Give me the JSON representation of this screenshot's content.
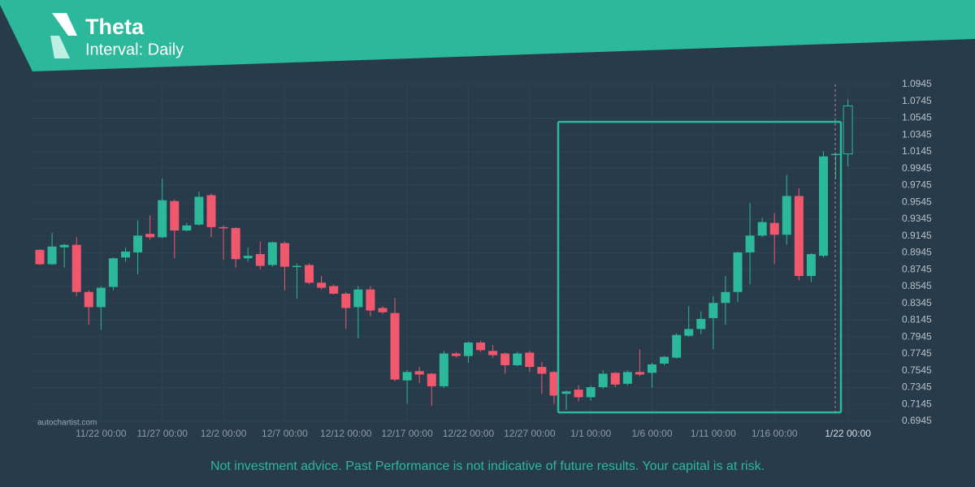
{
  "chart_data": {
    "type": "candlestick",
    "title": "Theta",
    "subtitle": "Interval: Daily",
    "watermark": "autochartist.com",
    "disclaimer": "Not investment advice. Past Performance is not indicative of future results. Your capital is at risk.",
    "categories": [
      null,
      null,
      null,
      null,
      null,
      "11/22 00:00",
      null,
      null,
      null,
      null,
      "11/27 00:00",
      null,
      null,
      null,
      null,
      "12/2 00:00",
      null,
      null,
      null,
      null,
      "12/7 00:00",
      null,
      null,
      null,
      null,
      "12/12 00:00",
      null,
      null,
      null,
      null,
      "12/17 00:00",
      null,
      null,
      null,
      null,
      "12/22 00:00",
      null,
      null,
      null,
      null,
      "12/27 00:00",
      null,
      null,
      null,
      null,
      "1/1 00:00",
      null,
      null,
      null,
      null,
      "1/6 00:00",
      null,
      null,
      null,
      null,
      "1/11 00:00",
      null,
      null,
      null,
      null,
      "1/16 00:00",
      null,
      null,
      null,
      null,
      null,
      "1/22 00:00"
    ],
    "open": [
      0.898,
      0.881,
      0.901,
      0.904,
      0.848,
      0.83,
      0.854,
      0.889,
      0.895,
      0.917,
      0.913,
      0.956,
      0.921,
      0.928,
      0.963,
      0.925,
      0.924,
      0.888,
      0.893,
      0.88,
      0.906,
      0.878,
      0.88,
      0.859,
      0.855,
      0.846,
      0.83,
      0.851,
      0.829,
      0.823,
      0.743,
      0.754,
      0.751,
      0.736,
      0.775,
      0.772,
      0.788,
      0.778,
      0.775,
      0.761,
      0.776,
      0.759,
      0.753,
      0.727,
      0.732,
      0.723,
      0.735,
      0.752,
      0.739,
      0.753,
      0.752,
      0.763,
      0.77,
      0.796,
      0.804,
      0.817,
      0.835,
      0.848,
      0.895,
      0.915,
      0.93,
      0.916,
      0.962,
      0.867,
      0.891,
      1.011,
      1.012
    ],
    "high": [
      0.899,
      0.918,
      0.905,
      0.913,
      0.85,
      0.855,
      0.889,
      0.901,
      0.933,
      0.939,
      0.983,
      0.958,
      0.93,
      0.967,
      0.965,
      0.927,
      0.925,
      0.901,
      0.908,
      0.908,
      0.908,
      0.882,
      0.882,
      0.867,
      0.857,
      0.848,
      0.855,
      0.855,
      0.831,
      0.841,
      0.755,
      0.759,
      0.752,
      0.778,
      0.777,
      0.789,
      0.79,
      0.785,
      0.776,
      0.777,
      0.778,
      0.765,
      0.754,
      0.731,
      0.737,
      0.737,
      0.755,
      0.753,
      0.755,
      0.78,
      0.764,
      0.772,
      0.799,
      0.831,
      0.825,
      0.843,
      0.867,
      0.896,
      0.954,
      0.936,
      0.942,
      0.987,
      0.971,
      0.894,
      1.015,
      1.013,
      1.077
    ],
    "low": [
      0.88,
      0.88,
      0.877,
      0.843,
      0.809,
      0.803,
      0.85,
      0.884,
      0.869,
      0.91,
      0.912,
      0.888,
      0.92,
      0.927,
      0.913,
      0.886,
      0.877,
      0.884,
      0.875,
      0.878,
      0.85,
      0.84,
      0.857,
      0.851,
      0.845,
      0.804,
      0.793,
      0.819,
      0.822,
      0.742,
      0.715,
      0.74,
      0.713,
      0.734,
      0.77,
      0.764,
      0.777,
      0.77,
      0.751,
      0.76,
      0.753,
      0.727,
      0.715,
      0.708,
      0.718,
      0.719,
      0.733,
      0.735,
      0.737,
      0.748,
      0.734,
      0.761,
      0.769,
      0.795,
      0.798,
      0.78,
      0.809,
      0.836,
      0.857,
      0.913,
      0.881,
      0.904,
      0.862,
      0.86,
      0.889,
      0.983,
      0.997
    ],
    "close": [
      0.881,
      0.902,
      0.904,
      0.848,
      0.83,
      0.853,
      0.888,
      0.896,
      0.915,
      0.913,
      0.957,
      0.921,
      0.927,
      0.961,
      0.925,
      0.924,
      0.887,
      0.891,
      0.879,
      0.907,
      0.878,
      0.879,
      0.859,
      0.853,
      0.846,
      0.829,
      0.851,
      0.826,
      0.824,
      0.744,
      0.753,
      0.75,
      0.736,
      0.775,
      0.772,
      0.788,
      0.779,
      0.773,
      0.761,
      0.775,
      0.759,
      0.751,
      0.725,
      0.73,
      0.723,
      0.735,
      0.751,
      0.738,
      0.753,
      0.75,
      0.762,
      0.771,
      0.797,
      0.804,
      0.816,
      0.835,
      0.848,
      0.895,
      0.915,
      0.931,
      0.916,
      0.962,
      0.867,
      0.893,
      1.009,
      1.012,
      1.069
    ],
    "up_color": "#2bb89b",
    "down_color": "#f2586d",
    "pattern": {
      "top": 1.05,
      "bottom": 0.705,
      "color": "#2bb89b"
    },
    "ylim": [
      0.6945,
      1.0945
    ],
    "yticks": [
      0.6945,
      0.7145,
      0.7345,
      0.7545,
      0.7745,
      0.7945,
      0.8145,
      0.8345,
      0.8545,
      0.8745,
      0.8945,
      0.9145,
      0.9345,
      0.9545,
      0.9745,
      0.9945,
      1.0145,
      1.0345,
      1.0545,
      1.0745,
      1.0945
    ],
    "grid": true
  }
}
